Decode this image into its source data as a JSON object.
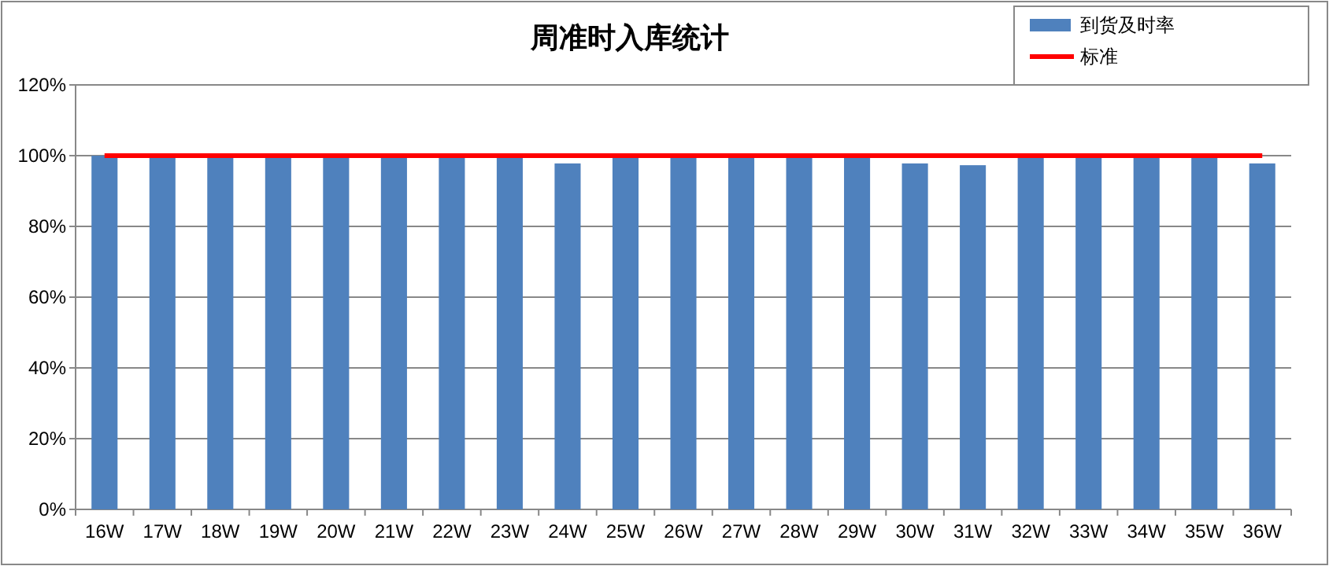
{
  "chart_data": {
    "type": "bar",
    "title": "周准时入库统计",
    "categories": [
      "16W",
      "17W",
      "18W",
      "19W",
      "20W",
      "21W",
      "22W",
      "23W",
      "24W",
      "25W",
      "26W",
      "27W",
      "28W",
      "29W",
      "30W",
      "31W",
      "32W",
      "33W",
      "34W",
      "35W",
      "36W"
    ],
    "series": [
      {
        "name": "到货及时率",
        "color": "#4f81bd",
        "values": [
          100,
          100,
          100,
          100,
          100,
          100,
          100,
          100,
          97.8,
          100,
          100,
          100,
          100,
          100,
          97.8,
          97.3,
          100,
          100,
          100,
          100,
          97.8
        ]
      },
      {
        "name": "标准",
        "type": "line",
        "color": "#ff0000",
        "values": [
          100,
          100,
          100,
          100,
          100,
          100,
          100,
          100,
          100,
          100,
          100,
          100,
          100,
          100,
          100,
          100,
          100,
          100,
          100,
          100,
          100
        ]
      }
    ],
    "ylim": [
      0,
      120
    ],
    "yticks": [
      {
        "value": 0,
        "label": "0%"
      },
      {
        "value": 20,
        "label": "20%"
      },
      {
        "value": 40,
        "label": "40%"
      },
      {
        "value": 60,
        "label": "60%"
      },
      {
        "value": 80,
        "label": "80%"
      },
      {
        "value": 100,
        "label": "100%"
      },
      {
        "value": 120,
        "label": "120%"
      }
    ],
    "grid": "y",
    "legend": "top right"
  }
}
